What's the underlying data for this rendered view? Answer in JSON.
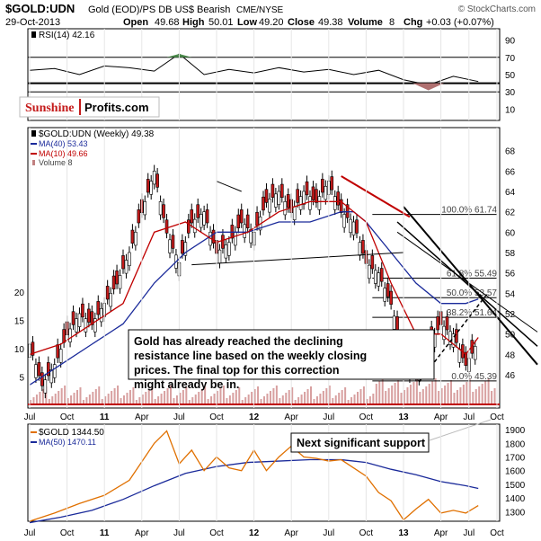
{
  "header": {
    "symbol": "$GOLD:UDN",
    "description": "Gold (EOD)/PS DB US$ Bearish",
    "exchange": "CME/NYSE",
    "copyright": "© StockCharts.com",
    "date": "29-Oct-2013",
    "open_label": "Open",
    "open": "49.68",
    "high_label": "High",
    "high": "50.01",
    "low_label": "Low",
    "low": "49.20",
    "close_label": "Close",
    "close": "49.38",
    "volume_label": "Volume",
    "volume": "8",
    "chg_label": "Chg",
    "chg": "+0.03 (+0.07%)"
  },
  "logo": {
    "word1": "Sunshine",
    "word2": "Profits.com"
  },
  "chart_data": [
    {
      "type": "line",
      "name": "rsi-panel",
      "title": "RSI(14) 42.16",
      "ylim": [
        0,
        100
      ],
      "yticks": [
        10,
        30,
        50,
        70,
        90
      ],
      "reference_lines": [
        30,
        40,
        70
      ],
      "x": [
        0,
        8,
        16,
        24,
        32,
        40,
        48,
        56,
        64,
        72,
        80,
        88,
        96,
        104,
        112,
        120,
        128,
        136,
        144
      ],
      "values": [
        55,
        57,
        50,
        60,
        58,
        54,
        74,
        50,
        56,
        52,
        58,
        53,
        56,
        50,
        55,
        44,
        38,
        48,
        42
      ],
      "overbought_highlight_color": "#4a8a4a",
      "oversold_highlight_color": "#b07070"
    },
    {
      "type": "bar",
      "name": "price-panel",
      "series": [
        {
          "name": "$GOLD:UDN (Weekly) 49.38",
          "color": "#000000"
        },
        {
          "name": "MA(40) 53.43",
          "color": "#1a2a9a"
        },
        {
          "name": "MA(10) 49.66",
          "color": "#c00000"
        },
        {
          "name": "Volume 8",
          "color": "#c08080"
        }
      ],
      "close_points": {
        "x": [
          0,
          4,
          8,
          12,
          16,
          20,
          24,
          28,
          32,
          36,
          40,
          44,
          48,
          52,
          56,
          60,
          64,
          68,
          72,
          76,
          80,
          84,
          88,
          92,
          96,
          100,
          104,
          108,
          112,
          116,
          120,
          124,
          128,
          132,
          136,
          140,
          144
        ],
        "values": [
          49,
          45,
          47,
          50,
          52,
          51,
          53,
          55,
          58,
          62,
          66,
          60,
          57,
          61,
          62,
          58,
          59,
          61,
          60,
          63,
          64,
          62,
          64,
          63,
          65,
          62,
          61,
          57,
          56,
          53,
          48,
          46,
          49,
          51,
          50,
          47,
          49.38
        ]
      },
      "ma40": {
        "x": [
          0,
          10,
          20,
          30,
          40,
          50,
          60,
          70,
          80,
          90,
          100,
          104,
          108,
          116,
          124,
          132,
          140,
          144
        ],
        "values": [
          45,
          47,
          49,
          51,
          55,
          58,
          60,
          60,
          61,
          61,
          62,
          62,
          61,
          58,
          55,
          53,
          53,
          53.43
        ]
      },
      "ma10": {
        "x": [
          0,
          10,
          20,
          30,
          40,
          50,
          60,
          70,
          80,
          90,
          100,
          108,
          116,
          124,
          132,
          140,
          144
        ],
        "values": [
          48,
          49,
          51,
          53,
          60,
          61,
          59,
          60,
          62,
          63,
          63,
          61,
          55,
          50,
          50,
          48,
          49.66
        ]
      },
      "right_ticks": [
        46,
        48,
        50,
        52,
        54,
        56,
        58,
        60,
        62,
        64,
        66,
        68
      ],
      "left_volume_ticks": [
        5,
        10,
        15,
        20
      ],
      "fib_levels": [
        {
          "label": "100.0% 61.74",
          "value": 61.74
        },
        {
          "label": "61.8% 55.49",
          "value": 55.49
        },
        {
          "label": "50.0% 53.57",
          "value": 53.57
        },
        {
          "label": "38.2% 51.64",
          "value": 51.64
        },
        {
          "label": "0.0% 45.39",
          "value": 45.39
        }
      ],
      "annotation": "Gold has already reached the declining resistance line based on the weekly closing prices. The final top for this correction might already be in."
    },
    {
      "type": "line",
      "name": "gold-panel",
      "series": [
        {
          "name": "$GOLD 1344.50",
          "color": "#e07000"
        },
        {
          "name": "MA(50) 1470.11",
          "color": "#1a2a9a"
        }
      ],
      "gold": {
        "x": [
          0,
          8,
          16,
          24,
          32,
          40,
          44,
          48,
          52,
          56,
          60,
          64,
          68,
          72,
          76,
          80,
          84,
          88,
          92,
          96,
          100,
          104,
          108,
          112,
          116,
          120,
          124,
          128,
          132,
          136,
          140,
          144
        ],
        "values": [
          1230,
          1290,
          1360,
          1420,
          1530,
          1800,
          1890,
          1650,
          1750,
          1600,
          1700,
          1620,
          1600,
          1750,
          1600,
          1700,
          1780,
          1700,
          1690,
          1670,
          1680,
          1620,
          1560,
          1440,
          1380,
          1240,
          1320,
          1390,
          1290,
          1310,
          1290,
          1344.5
        ]
      },
      "ma50": {
        "x": [
          0,
          10,
          20,
          30,
          40,
          50,
          60,
          70,
          80,
          90,
          100,
          104,
          108,
          116,
          124,
          132,
          140,
          144
        ],
        "values": [
          1220,
          1260,
          1310,
          1390,
          1490,
          1580,
          1630,
          1660,
          1670,
          1680,
          1680,
          1670,
          1660,
          1610,
          1570,
          1520,
          1490,
          1470.11
        ]
      },
      "right_ticks": [
        1300,
        1400,
        1500,
        1600,
        1700,
        1800,
        1900
      ],
      "ylim": [
        1250,
        1920
      ],
      "annotation": "Next significant support"
    }
  ],
  "x_axis": {
    "labels": [
      "Jul",
      "Oct",
      "11",
      "Apr",
      "Jul",
      "Oct",
      "12",
      "Apr",
      "Jul",
      "Oct",
      "13",
      "Apr",
      "Jul",
      "Oct"
    ],
    "positions": [
      0,
      12,
      24,
      36,
      48,
      60,
      72,
      84,
      96,
      108,
      120,
      132,
      141,
      150
    ]
  }
}
